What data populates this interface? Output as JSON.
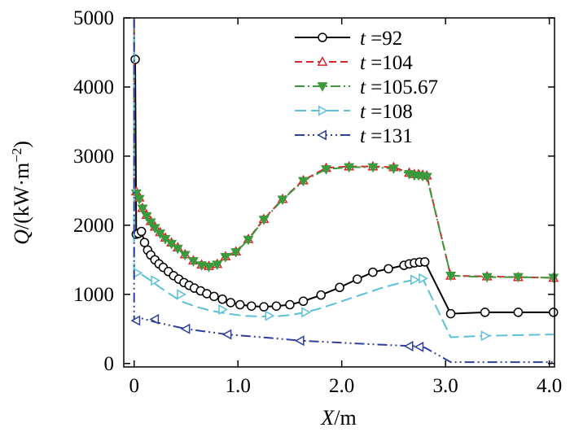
{
  "chart_data": {
    "type": "line",
    "xlabel": {
      "var": "X",
      "unit": "/m"
    },
    "ylabel": {
      "var": "Q",
      "unit": "/(kW·m",
      "sup": "−2",
      "close": ")"
    },
    "xlim": [
      -0.1,
      4.05
    ],
    "ylim": [
      -50,
      5000
    ],
    "xticks": [
      0,
      1,
      2,
      3,
      4
    ],
    "xtick_labels": [
      "0",
      "1.0",
      "2.0",
      "3.0",
      "4.0"
    ],
    "yticks": [
      0,
      1000,
      2000,
      3000,
      4000,
      5000
    ],
    "ytick_labels": [
      "0",
      "1000",
      "2000",
      "3000",
      "4000",
      "5000"
    ],
    "legend_position": "top-right",
    "series": [
      {
        "name": "t =92",
        "var": "t",
        "value": "=92",
        "color": "#000000",
        "dash": "",
        "marker": "circle",
        "x": [
          0.01,
          0.02,
          0.04,
          0.07,
          0.1,
          0.13,
          0.16,
          0.2,
          0.24,
          0.28,
          0.33,
          0.38,
          0.43,
          0.48,
          0.53,
          0.58,
          0.64,
          0.7,
          0.77,
          0.85,
          0.93,
          1.02,
          1.13,
          1.25,
          1.37,
          1.5,
          1.63,
          1.8,
          1.98,
          2.15,
          2.3,
          2.45,
          2.6,
          2.65,
          2.7,
          2.75,
          2.8,
          3.05,
          3.38,
          3.7,
          4.04
        ],
        "y": [
          4400,
          1870,
          1880,
          1910,
          1750,
          1640,
          1570,
          1500,
          1440,
          1390,
          1330,
          1270,
          1220,
          1170,
          1130,
          1090,
          1050,
          1010,
          970,
          930,
          880,
          850,
          830,
          820,
          830,
          850,
          900,
          990,
          1100,
          1220,
          1320,
          1370,
          1420,
          1440,
          1455,
          1465,
          1470,
          720,
          740,
          740,
          740
        ],
        "mx": [
          0.01,
          0.02,
          0.04,
          0.07,
          0.1,
          0.13,
          0.16,
          0.2,
          0.24,
          0.28,
          0.33,
          0.38,
          0.43,
          0.48,
          0.53,
          0.58,
          0.64,
          0.7,
          0.77,
          0.85,
          0.93,
          1.02,
          1.13,
          1.25,
          1.37,
          1.5,
          1.63,
          1.8,
          1.98,
          2.15,
          2.3,
          2.45,
          2.6,
          2.65,
          2.7,
          2.75,
          2.8,
          3.05,
          3.38,
          3.7,
          4.04
        ],
        "my": [
          4400,
          1870,
          1880,
          1910,
          1750,
          1640,
          1570,
          1500,
          1440,
          1390,
          1330,
          1270,
          1220,
          1170,
          1130,
          1090,
          1050,
          1010,
          970,
          930,
          880,
          850,
          830,
          820,
          830,
          850,
          900,
          990,
          1100,
          1220,
          1320,
          1370,
          1420,
          1440,
          1455,
          1465,
          1470,
          720,
          740,
          740,
          740
        ]
      },
      {
        "name": "t =104",
        "var": "t",
        "value": "=104",
        "color": "#d8262c",
        "dash": "9,5",
        "marker": "triangle-up",
        "x": [
          0.0,
          0.0,
          0.02,
          0.05,
          0.08,
          0.12,
          0.16,
          0.2,
          0.25,
          0.3,
          0.36,
          0.42,
          0.49,
          0.57,
          0.65,
          0.72,
          0.8,
          0.88,
          0.98,
          1.1,
          1.25,
          1.43,
          1.63,
          1.85,
          2.07,
          2.3,
          2.5,
          2.65,
          2.7,
          2.74,
          2.78,
          2.82,
          3.05,
          3.4,
          3.7,
          4.04
        ],
        "y": [
          5000,
          2450,
          2490,
          2400,
          2250,
          2150,
          2060,
          1980,
          1900,
          1820,
          1750,
          1680,
          1580,
          1490,
          1430,
          1410,
          1440,
          1550,
          1620,
          1800,
          2090,
          2380,
          2650,
          2830,
          2850,
          2850,
          2840,
          2760,
          2740,
          2740,
          2730,
          2720,
          1270,
          1260,
          1250,
          1240
        ],
        "mx": [
          0.02,
          0.05,
          0.08,
          0.12,
          0.16,
          0.2,
          0.25,
          0.3,
          0.36,
          0.42,
          0.49,
          0.57,
          0.65,
          0.72,
          0.8,
          0.88,
          0.98,
          1.1,
          1.25,
          1.43,
          1.63,
          1.85,
          2.07,
          2.3,
          2.5,
          2.65,
          2.7,
          2.74,
          2.78,
          2.82,
          3.05,
          3.4,
          3.7,
          4.04
        ],
        "my": [
          2490,
          2400,
          2250,
          2150,
          2060,
          1980,
          1900,
          1820,
          1750,
          1680,
          1580,
          1490,
          1430,
          1410,
          1440,
          1550,
          1620,
          1800,
          2090,
          2380,
          2650,
          2830,
          2850,
          2850,
          2840,
          2760,
          2740,
          2740,
          2730,
          2720,
          1270,
          1260,
          1250,
          1240
        ]
      },
      {
        "name": "t =105.67",
        "var": "t",
        "value": "=105.67",
        "color": "#3a9a3c",
        "dash": "12,4,2,4",
        "marker": "triangle-down",
        "x": [
          0.0,
          0.0,
          0.02,
          0.05,
          0.08,
          0.12,
          0.16,
          0.2,
          0.25,
          0.3,
          0.36,
          0.42,
          0.49,
          0.57,
          0.65,
          0.72,
          0.8,
          0.88,
          0.98,
          1.1,
          1.25,
          1.43,
          1.63,
          1.85,
          2.07,
          2.3,
          2.5,
          2.65,
          2.7,
          2.74,
          2.78,
          2.82,
          3.05,
          3.4,
          3.7,
          4.04
        ],
        "y": [
          5000,
          2450,
          2460,
          2380,
          2240,
          2130,
          2040,
          1960,
          1880,
          1800,
          1730,
          1660,
          1570,
          1480,
          1420,
          1400,
          1430,
          1540,
          1610,
          1790,
          2080,
          2370,
          2640,
          2810,
          2840,
          2840,
          2820,
          2740,
          2720,
          2720,
          2710,
          2700,
          1270,
          1250,
          1250,
          1240
        ],
        "mx": [
          0.02,
          0.05,
          0.08,
          0.12,
          0.16,
          0.2,
          0.25,
          0.3,
          0.36,
          0.42,
          0.49,
          0.57,
          0.65,
          0.72,
          0.8,
          0.88,
          0.98,
          1.1,
          1.25,
          1.43,
          1.63,
          1.85,
          2.07,
          2.3,
          2.5,
          2.65,
          2.7,
          2.74,
          2.78,
          2.82,
          3.05,
          3.4,
          3.7,
          4.04
        ],
        "my": [
          2460,
          2380,
          2240,
          2130,
          2040,
          1960,
          1880,
          1800,
          1730,
          1660,
          1570,
          1480,
          1420,
          1400,
          1430,
          1540,
          1610,
          1790,
          2080,
          2370,
          2640,
          2810,
          2840,
          2840,
          2820,
          2740,
          2720,
          2720,
          2710,
          2700,
          1270,
          1250,
          1250,
          1240
        ]
      },
      {
        "name": "t =108",
        "var": "t",
        "value": "=108",
        "color": "#5bc0d8",
        "dash": "14,6",
        "marker": "triangle-right",
        "x": [
          0.0,
          0.0,
          0.03,
          0.08,
          0.15,
          0.25,
          0.35,
          0.45,
          0.6,
          0.75,
          0.9,
          1.05,
          1.2,
          1.35,
          1.5,
          1.65,
          1.8,
          2.0,
          2.2,
          2.4,
          2.6,
          2.7,
          2.78,
          3.05,
          3.38,
          3.7,
          4.04
        ],
        "y": [
          4750,
          1340,
          1310,
          1280,
          1210,
          1100,
          1000,
          900,
          820,
          760,
          720,
          690,
          680,
          680,
          700,
          740,
          800,
          900,
          1000,
          1100,
          1180,
          1210,
          1230,
          380,
          400,
          410,
          420
        ],
        "mx": [
          0.03,
          0.2,
          0.45,
          0.85,
          1.3,
          1.65,
          2.7,
          2.78,
          3.38
        ],
        "my": [
          1310,
          1200,
          1000,
          780,
          690,
          740,
          1210,
          1230,
          400
        ]
      },
      {
        "name": "t =131",
        "var": "t",
        "value": "=131",
        "color": "#2e3e9b",
        "dash": "12,4,2,4,2,4",
        "marker": "triangle-left",
        "x": [
          0.0,
          0.0,
          0.02,
          0.08,
          0.2,
          0.5,
          0.9,
          1.3,
          1.6,
          2.0,
          2.4,
          2.7,
          2.8,
          3.05,
          3.4,
          3.7,
          4.04
        ],
        "y": [
          4980,
          620,
          620,
          650,
          600,
          500,
          420,
          370,
          330,
          300,
          270,
          250,
          230,
          20,
          20,
          20,
          20
        ],
        "mx": [
          0.02,
          0.2,
          0.5,
          0.9,
          1.6,
          2.65,
          2.75
        ],
        "my": [
          620,
          640,
          500,
          420,
          330,
          250,
          240
        ]
      }
    ]
  }
}
